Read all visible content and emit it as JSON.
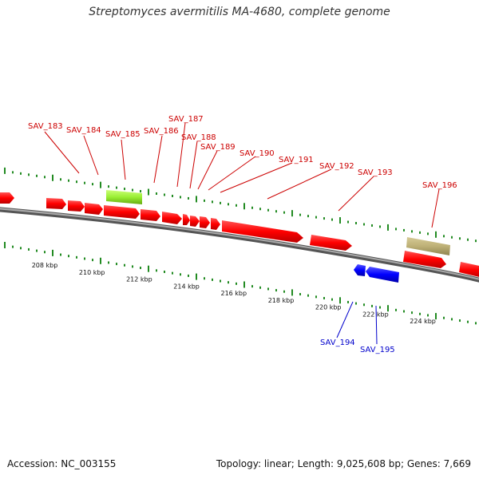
{
  "title": "Streptomyces avermitilis MA-4680, complete genome",
  "footer": {
    "accession": "Accession: NC_003155",
    "stats": "Topology: linear; Length: 9,025,608 bp; Genes: 7,669"
  },
  "colors": {
    "forward_gene": "#ff0000",
    "reverse_gene": "#0000ff",
    "highlight_gene": "#99ee33",
    "rna_gene": "#bdb076",
    "tick": "#228b22",
    "backbone": "#888888",
    "forward_label": "#cc0000",
    "reverse_label": "#0000cc"
  },
  "axis": {
    "unit": "kbp",
    "labels": [
      {
        "kbp": 208,
        "text": "208 kbp"
      },
      {
        "kbp": 210,
        "text": "210 kbp"
      },
      {
        "kbp": 212,
        "text": "212 kbp"
      },
      {
        "kbp": 214,
        "text": "214 kbp"
      },
      {
        "kbp": 216,
        "text": "216 kbp"
      },
      {
        "kbp": 218,
        "text": "218 kbp"
      },
      {
        "kbp": 220,
        "text": "220 kbp"
      },
      {
        "kbp": 222,
        "text": "222 kbp"
      },
      {
        "kbp": 224,
        "text": "224 kbp"
      }
    ]
  },
  "genes": [
    {
      "label": "SAV_183",
      "strand": "+"
    },
    {
      "label": "SAV_184",
      "strand": "+"
    },
    {
      "label": "SAV_185",
      "strand": "+",
      "kind": "highlight"
    },
    {
      "label": "SAV_186",
      "strand": "+"
    },
    {
      "label": "SAV_187",
      "strand": "+"
    },
    {
      "label": "SAV_188",
      "strand": "+"
    },
    {
      "label": "SAV_189",
      "strand": "+"
    },
    {
      "label": "SAV_190",
      "strand": "+"
    },
    {
      "label": "SAV_191",
      "strand": "+"
    },
    {
      "label": "SAV_192",
      "strand": "+"
    },
    {
      "label": "SAV_193",
      "strand": "+"
    },
    {
      "label": "SAV_194",
      "strand": "-"
    },
    {
      "label": "SAV_195",
      "strand": "-"
    },
    {
      "label": "SAV_196",
      "strand": "+",
      "kind": "rna"
    }
  ]
}
